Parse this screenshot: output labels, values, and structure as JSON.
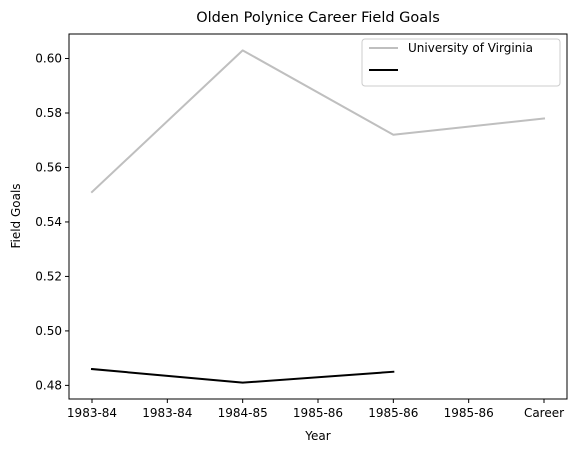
{
  "chart_data": {
    "type": "line",
    "title": "Olden Polynice Career Field Goals",
    "xlabel": "Year",
    "ylabel": "Field Goals",
    "x_tick_labels": [
      "1983-84",
      "1983-84",
      "1984-85",
      "1985-86",
      "1985-86",
      "1985-86",
      "Career"
    ],
    "ylim": [
      0.475,
      0.609
    ],
    "y_ticks": [
      0.48,
      0.5,
      0.52,
      0.54,
      0.56,
      0.58,
      0.6
    ],
    "y_tick_labels": [
      "0.48",
      "0.50",
      "0.52",
      "0.54",
      "0.56",
      "0.58",
      "0.60"
    ],
    "grid": false,
    "legend": "top-right",
    "series": [
      {
        "name": "University of Virginia",
        "color": "#bfbfbf",
        "points": [
          {
            "x": 0,
            "y": 0.551
          },
          {
            "x": 2,
            "y": 0.603
          },
          {
            "x": 4,
            "y": 0.572
          },
          {
            "x": 6,
            "y": 0.578
          }
        ]
      },
      {
        "name": "",
        "color": "#000000",
        "points": [
          {
            "x": 0,
            "y": 0.486
          },
          {
            "x": 2,
            "y": 0.481
          },
          {
            "x": 4,
            "y": 0.485
          }
        ]
      }
    ]
  }
}
